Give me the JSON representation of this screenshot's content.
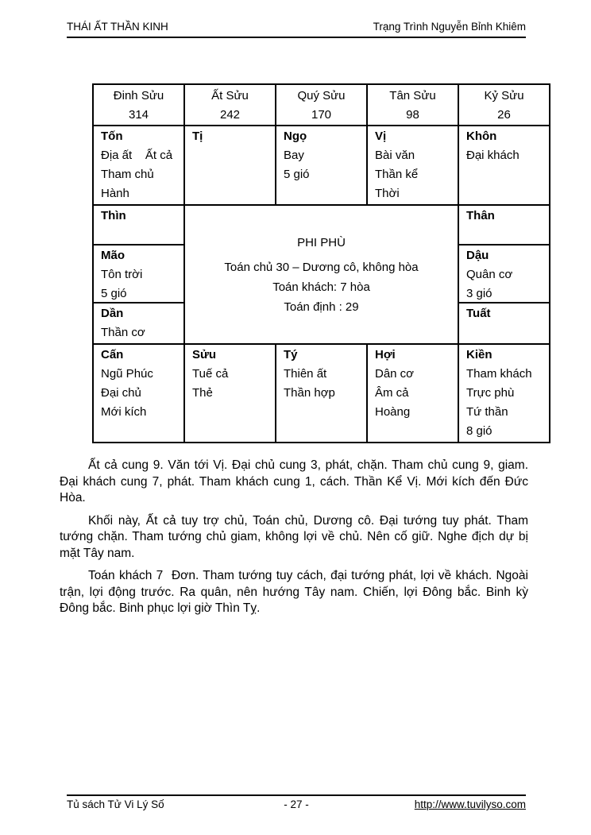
{
  "colors": {
    "text": "#000000",
    "background": "#ffffff",
    "border": "#000000"
  },
  "header": {
    "book_title": "THÁI ẤT THẦN KINH",
    "author": "Trạng Trình Nguyễn Bỉnh Khiêm"
  },
  "chart": {
    "year_row": [
      {
        "name": "Đinh Sửu",
        "value": "314"
      },
      {
        "name": "Ất Sửu",
        "value": "242"
      },
      {
        "name": "Quý Sửu",
        "value": "170"
      },
      {
        "name": "Tân Sửu",
        "value": "98"
      },
      {
        "name": "Kỷ Sửu",
        "value": "26"
      }
    ],
    "top_row": [
      {
        "branch": "Tốn",
        "lines": [
          "Địa ất    Ất cả",
          "Tham chủ",
          "Hành"
        ]
      },
      {
        "branch": "Tị",
        "lines": []
      },
      {
        "branch": "Ngọ",
        "lines": [
          "Bay",
          "5 gió"
        ]
      },
      {
        "branch": "Vị",
        "lines": [
          "Bài văn",
          "Thần kể",
          "Thời"
        ]
      },
      {
        "branch": "Khôn",
        "lines": [
          "Đại khách"
        ]
      }
    ],
    "left_column": [
      {
        "branch": "Thìn",
        "lines": []
      },
      {
        "branch": "Mão",
        "lines": [
          "Tôn trời",
          "5 gió"
        ]
      },
      {
        "branch": "Dần",
        "lines": [
          "Thần cơ"
        ]
      }
    ],
    "center": {
      "title": "PHI PHÙ",
      "line1": "Toán chủ 30 – Dương cô, không hòa",
      "line2": "Toán khách: 7 hòa",
      "line3": "Toán định : 29"
    },
    "right_column": [
      {
        "branch": "Thân",
        "lines": []
      },
      {
        "branch": "Dậu",
        "lines": [
          "Quân cơ",
          "3 gió"
        ]
      },
      {
        "branch": "Tuất",
        "lines": []
      }
    ],
    "bottom_row": [
      {
        "branch": "Cấn",
        "lines": [
          "Ngũ Phúc",
          "Đại chủ",
          "Mới kích"
        ]
      },
      {
        "branch": "Sửu",
        "lines": [
          "Tuế cả",
          "Thẻ"
        ]
      },
      {
        "branch": "Tý",
        "lines": [
          "Thiên ất",
          "Thần hợp"
        ]
      },
      {
        "branch": "Hợi",
        "lines": [
          "Dân cơ",
          "Âm cả",
          "Hoàng"
        ]
      },
      {
        "branch": "Kiền",
        "lines": [
          "Tham khách",
          "Trực phù",
          "Tứ thần",
          "8 gió"
        ]
      }
    ]
  },
  "paragraphs": {
    "p1": "Ất cả cung 9. Văn tới Vị. Đại chủ cung 3, phát, chặn. Tham chủ cung 9, giam. Đại khách cung 7, phát. Tham khách cung 1, cách. Thần Kể Vị. Mới kích đến Đức Hòa.",
    "p2": "Khối này, Ất cả tuy trợ chủ, Toán chủ, Dương cô. Đại tướng tuy phát. Tham tướng chặn. Tham tướng chủ giam, không lợi về chủ. Nên cố giữ. Nghe địch dự bị mặt Tây nam.",
    "p3": "Toán khách 7  Đơn. Tham tướng tuy cách, đại tướng phát, lợi về khách. Ngoài trận, lợi động trước. Ra quân, nên hướng Tây nam. Chiến, lợi Đông bắc. Binh kỳ Đông bắc. Binh phục lợi giờ Thìn Tỵ."
  },
  "footer": {
    "library": "Tủ sách Tử Vi Lý Số",
    "page_number": "- 27 -",
    "url": "http://www.tuvilyso.com"
  }
}
